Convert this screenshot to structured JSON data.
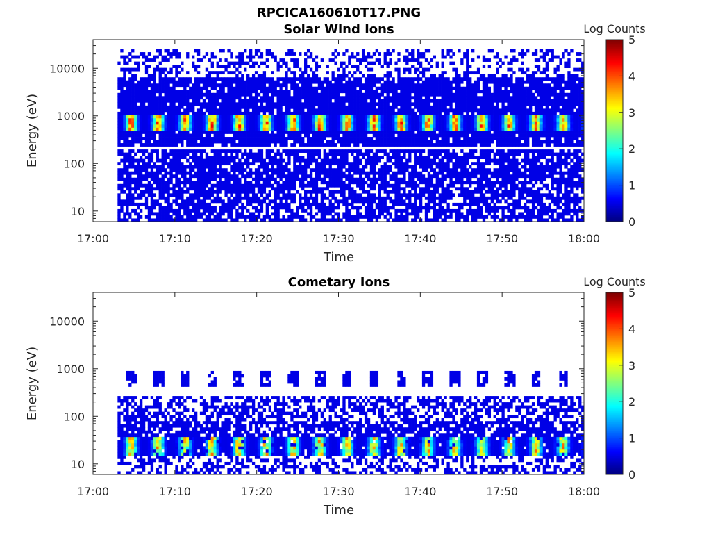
{
  "figure_title": "RPCICA160610T17.PNG",
  "chart_data": [
    {
      "type": "heatmap",
      "title": "Solar Wind Ions",
      "xlabel": "Time",
      "ylabel": "Energy (eV)",
      "x_ticks": [
        "17:00",
        "17:10",
        "17:20",
        "17:30",
        "17:40",
        "17:50",
        "18:00"
      ],
      "xlim": [
        "17:00",
        "18:00"
      ],
      "y_scale": "log",
      "y_ticks": [
        "10",
        "100",
        "1000",
        "10000"
      ],
      "ylim": [
        6,
        40000
      ],
      "data_start": "17:03",
      "colorbar": {
        "label": "Log Counts",
        "ticks": [
          "0",
          "1",
          "2",
          "3",
          "4",
          "5"
        ],
        "range": [
          0,
          5
        ],
        "colormap": "jet"
      },
      "features": {
        "background_level": 0.1,
        "peak_energy_band_eV": [
          500,
          1000
        ],
        "peak_level": 0.9,
        "peak_period_min": 3.3,
        "gap_energy_eV": 210,
        "coverage_eV": [
          6,
          25000
        ]
      }
    },
    {
      "type": "heatmap",
      "title": "Cometary Ions",
      "xlabel": "Time",
      "ylabel": "Energy (eV)",
      "x_ticks": [
        "17:00",
        "17:10",
        "17:20",
        "17:30",
        "17:40",
        "17:50",
        "18:00"
      ],
      "xlim": [
        "17:00",
        "18:00"
      ],
      "y_scale": "log",
      "y_ticks": [
        "10",
        "100",
        "1000",
        "10000"
      ],
      "ylim": [
        6,
        40000
      ],
      "data_start": "17:03",
      "colorbar": {
        "label": "Log Counts",
        "ticks": [
          "0",
          "1",
          "2",
          "3",
          "4",
          "5"
        ],
        "range": [
          0,
          5
        ],
        "colormap": "jet"
      },
      "features": {
        "background_level": 0.1,
        "peak_energy_band_eV": [
          15,
          35
        ],
        "peak_level": 0.8,
        "peak_period_min": 3.3,
        "upper_band_eV": [
          400,
          900
        ],
        "coverage_eV": [
          6,
          250
        ]
      }
    }
  ]
}
